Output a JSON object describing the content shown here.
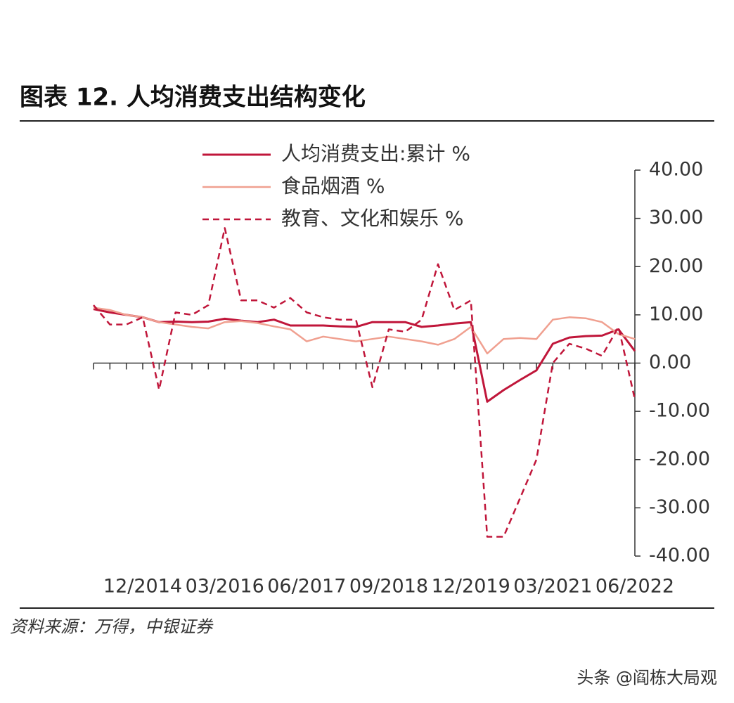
{
  "chart_data": {
    "type": "line",
    "title": "图表 12. 人均消费支出结构变化",
    "source": "资料来源：万得，中银证券",
    "watermark": "头条 @阎栋大局观",
    "categories": [
      null,
      null,
      null,
      "12/2014",
      null,
      null,
      null,
      null,
      "03/2016",
      null,
      null,
      null,
      null,
      "06/2017",
      null,
      null,
      null,
      null,
      "09/2018",
      null,
      null,
      null,
      null,
      "12/2019",
      null,
      null,
      null,
      null,
      "03/2021",
      null,
      null,
      null,
      null,
      "06/2022"
    ],
    "series": [
      {
        "name": "人均消费支出:累计 %",
        "color": "#c0163a",
        "dash": false,
        "values": [
          11.2,
          10.5,
          10.0,
          9.5,
          8.5,
          8.6,
          8.5,
          8.6,
          9.2,
          8.8,
          8.5,
          9.0,
          7.8,
          7.8,
          7.8,
          7.6,
          7.5,
          8.5,
          8.5,
          8.5,
          7.5,
          7.8,
          8.2,
          8.5,
          -8.0,
          -5.6,
          -3.5,
          -1.5,
          4.0,
          5.3,
          5.6,
          5.7,
          7.0,
          2.5
        ]
      },
      {
        "name": "食品烟酒 %",
        "color": "#f0a090",
        "dash": false,
        "values": [
          11.5,
          11.0,
          10.0,
          9.5,
          8.5,
          8.0,
          7.5,
          7.2,
          8.5,
          8.7,
          8.3,
          7.6,
          7.0,
          4.5,
          5.5,
          5.0,
          4.5,
          5.0,
          5.5,
          5.0,
          4.5,
          3.8,
          5.0,
          7.5,
          2.0,
          5.0,
          5.2,
          5.0,
          9.0,
          9.5,
          9.3,
          8.5,
          6.0,
          5.0
        ]
      },
      {
        "name": "教育、文化和娱乐 %",
        "color": "#c0163a",
        "dash": true,
        "values": [
          12.0,
          8.0,
          8.0,
          9.5,
          -5.5,
          10.5,
          10.0,
          12.0,
          28.0,
          13.0,
          13.0,
          11.5,
          13.5,
          10.5,
          9.5,
          9.0,
          9.0,
          -5.0,
          7.0,
          6.5,
          9.0,
          20.5,
          11.0,
          13.0,
          -36.0,
          -36.0,
          -28.0,
          -20.0,
          0.0,
          4.0,
          3.0,
          1.5,
          7.5,
          -7.5
        ]
      }
    ],
    "ylim": [
      -40,
      40
    ],
    "yticks": [
      {
        "value": 40,
        "label": "40.00"
      },
      {
        "value": 30,
        "label": "30.00"
      },
      {
        "value": 20,
        "label": "20.00"
      },
      {
        "value": 10,
        "label": "10.00"
      },
      {
        "value": 0,
        "label": "0.00"
      },
      {
        "value": -10,
        "label": "-10.00"
      },
      {
        "value": -20,
        "label": "-20.00"
      },
      {
        "value": -30,
        "label": "-30.00"
      },
      {
        "value": -40,
        "label": "-40.00"
      }
    ],
    "grid": false,
    "legend": "top-left"
  }
}
